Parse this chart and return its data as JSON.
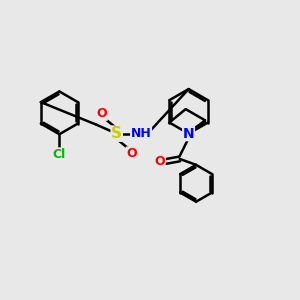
{
  "bg_color": "#e8e8e8",
  "bond_color": "#000000",
  "bond_width": 1.8,
  "atom_colors": {
    "N": "#0000ff",
    "O": "#ff0000",
    "S": "#cccc00",
    "Cl": "#00bb00",
    "C": "#000000",
    "H": "#444444"
  },
  "font_size": 8,
  "fig_size": [
    3.0,
    3.0
  ],
  "dpi": 100
}
